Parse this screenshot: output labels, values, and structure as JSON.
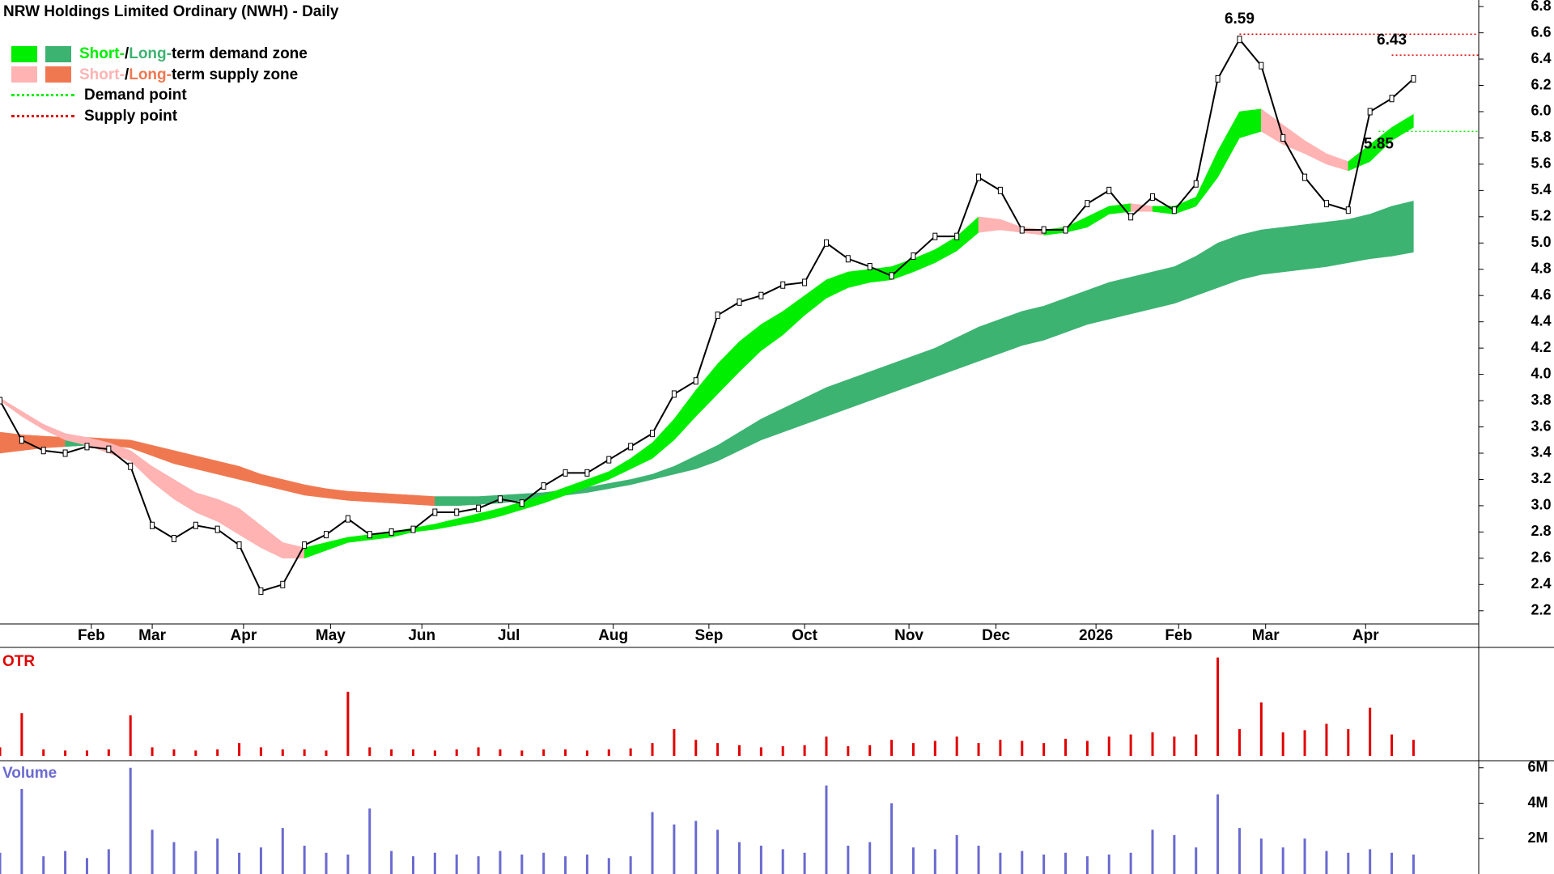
{
  "chart_data": {
    "type": "stock",
    "title": "NRW Holdings Limited Ordinary (NWH) - Daily",
    "legend": [
      {
        "short": "Short-",
        "sep": "/",
        "long": "Long-",
        "rest": "term demand zone"
      },
      {
        "short": "Short-",
        "sep": "/",
        "long": "Long-",
        "rest": "term supply zone"
      },
      {
        "rest": "Demand point"
      },
      {
        "rest": "Supply point"
      }
    ],
    "colors": {
      "demand_short": "#00ee00",
      "demand_long": "#3cb371",
      "supply_short": "#ffb3b3",
      "supply_long": "#f07850",
      "price": "#000000",
      "otr": "#e00000",
      "volume": "#6a6ad0"
    },
    "xlim": [
      0,
      340
    ],
    "xticks": [
      {
        "value": 21,
        "label": "Feb"
      },
      {
        "value": 35,
        "label": "Mar"
      },
      {
        "value": 56,
        "label": "Apr"
      },
      {
        "value": 76,
        "label": "May"
      },
      {
        "value": 97,
        "label": "Jun"
      },
      {
        "value": 117,
        "label": "Jul"
      },
      {
        "value": 141,
        "label": "Aug"
      },
      {
        "value": 163,
        "label": "Sep"
      },
      {
        "value": 185,
        "label": "Oct"
      },
      {
        "value": 209,
        "label": "Nov"
      },
      {
        "value": 229,
        "label": "Dec"
      },
      {
        "value": 252,
        "label": "2026"
      },
      {
        "value": 271,
        "label": "Feb"
      },
      {
        "value": 291,
        "label": "Mar"
      },
      {
        "value": 314,
        "label": "Apr"
      }
    ],
    "ylim": [
      2.1,
      6.85
    ],
    "yticks": [
      2.2,
      2.4,
      2.6,
      2.8,
      {
        "value": 3.0,
        "label": "3.0"
      },
      3.2,
      3.4,
      3.6,
      3.8,
      {
        "value": 4.0,
        "label": "4.0"
      },
      4.2,
      4.4,
      4.6,
      4.8,
      {
        "value": 5.0,
        "label": "5.0"
      },
      5.2,
      5.4,
      5.6,
      5.8,
      {
        "value": 6.0,
        "label": "6.0"
      },
      6.2,
      6.4,
      6.6,
      6.8
    ],
    "x": [
      0,
      5,
      10,
      15,
      20,
      25,
      30,
      35,
      40,
      45,
      50,
      55,
      60,
      65,
      70,
      75,
      80,
      85,
      90,
      95,
      100,
      105,
      110,
      115,
      120,
      125,
      130,
      135,
      140,
      145,
      150,
      155,
      160,
      165,
      170,
      175,
      180,
      185,
      190,
      195,
      200,
      205,
      210,
      215,
      220,
      225,
      230,
      235,
      240,
      245,
      250,
      255,
      260,
      265,
      270,
      275,
      280,
      285,
      290,
      295,
      300,
      305,
      310,
      315,
      320,
      325
    ],
    "close": [
      3.8,
      3.5,
      3.42,
      3.4,
      3.45,
      3.43,
      3.3,
      2.85,
      2.75,
      2.85,
      2.82,
      2.7,
      2.35,
      2.4,
      2.7,
      2.78,
      2.9,
      2.78,
      2.8,
      2.82,
      2.95,
      2.95,
      2.98,
      3.05,
      3.02,
      3.15,
      3.25,
      3.25,
      3.35,
      3.45,
      3.55,
      3.85,
      3.95,
      4.45,
      4.55,
      4.6,
      4.68,
      4.7,
      5.0,
      4.88,
      4.82,
      4.75,
      4.9,
      5.05,
      5.05,
      5.5,
      5.4,
      5.1,
      5.1,
      5.1,
      5.3,
      5.4,
      5.2,
      5.35,
      5.25,
      5.45,
      6.25,
      6.55,
      6.35,
      5.8,
      5.5,
      5.3,
      5.25,
      6.0,
      6.1,
      6.25
    ],
    "short_upper": [
      3.82,
      3.72,
      3.62,
      3.55,
      3.52,
      3.48,
      3.42,
      3.3,
      3.2,
      3.1,
      3.05,
      2.98,
      2.85,
      2.72,
      2.68,
      2.72,
      2.76,
      2.78,
      2.8,
      2.83,
      2.86,
      2.9,
      2.94,
      2.98,
      3.03,
      3.08,
      3.14,
      3.2,
      3.26,
      3.36,
      3.48,
      3.66,
      3.88,
      4.08,
      4.25,
      4.38,
      4.48,
      4.6,
      4.72,
      4.78,
      4.8,
      4.82,
      4.88,
      4.95,
      5.05,
      5.2,
      5.18,
      5.12,
      5.1,
      5.12,
      5.2,
      5.28,
      5.3,
      5.28,
      5.28,
      5.35,
      5.7,
      6.0,
      6.02,
      5.9,
      5.78,
      5.68,
      5.62,
      5.75,
      5.88,
      5.98
    ],
    "short_lower": [
      3.8,
      3.68,
      3.58,
      3.5,
      3.46,
      3.4,
      3.34,
      3.18,
      3.05,
      2.95,
      2.88,
      2.78,
      2.68,
      2.6,
      2.6,
      2.66,
      2.72,
      2.74,
      2.76,
      2.8,
      2.82,
      2.85,
      2.88,
      2.92,
      2.97,
      3.02,
      3.08,
      3.14,
      3.2,
      3.28,
      3.36,
      3.5,
      3.68,
      3.85,
      4.02,
      4.18,
      4.3,
      4.45,
      4.58,
      4.66,
      4.7,
      4.72,
      4.78,
      4.85,
      4.94,
      5.08,
      5.1,
      5.08,
      5.06,
      5.08,
      5.12,
      5.22,
      5.24,
      5.24,
      5.22,
      5.28,
      5.5,
      5.8,
      5.85,
      5.75,
      5.68,
      5.6,
      5.55,
      5.62,
      5.78,
      5.88
    ],
    "long_upper": [
      3.56,
      3.54,
      3.53,
      3.52,
      3.52,
      3.51,
      3.5,
      3.46,
      3.42,
      3.38,
      3.34,
      3.3,
      3.24,
      3.2,
      3.16,
      3.13,
      3.11,
      3.1,
      3.09,
      3.08,
      3.07,
      3.07,
      3.07,
      3.08,
      3.09,
      3.1,
      3.12,
      3.14,
      3.17,
      3.2,
      3.24,
      3.3,
      3.38,
      3.46,
      3.56,
      3.66,
      3.74,
      3.82,
      3.9,
      3.96,
      4.02,
      4.08,
      4.14,
      4.2,
      4.28,
      4.36,
      4.42,
      4.48,
      4.52,
      4.58,
      4.64,
      4.7,
      4.74,
      4.78,
      4.82,
      4.9,
      5.0,
      5.06,
      5.1,
      5.12,
      5.14,
      5.16,
      5.18,
      5.22,
      5.28,
      5.32
    ],
    "long_lower": [
      3.4,
      3.42,
      3.44,
      3.45,
      3.46,
      3.46,
      3.44,
      3.38,
      3.32,
      3.28,
      3.24,
      3.2,
      3.16,
      3.12,
      3.08,
      3.06,
      3.04,
      3.03,
      3.02,
      3.01,
      3.0,
      3.0,
      3.01,
      3.02,
      3.04,
      3.06,
      3.08,
      3.1,
      3.13,
      3.16,
      3.2,
      3.24,
      3.28,
      3.34,
      3.42,
      3.5,
      3.56,
      3.62,
      3.68,
      3.74,
      3.8,
      3.86,
      3.92,
      3.98,
      4.04,
      4.1,
      4.16,
      4.22,
      4.26,
      4.32,
      4.38,
      4.42,
      4.46,
      4.5,
      4.54,
      4.6,
      4.66,
      4.72,
      4.76,
      4.78,
      4.8,
      4.82,
      4.85,
      4.88,
      4.9,
      4.93
    ],
    "levels": [
      {
        "value": 6.59,
        "kind": "supply",
        "x": 285
      },
      {
        "value": 6.43,
        "kind": "supply",
        "x": 320
      },
      {
        "value": 5.85,
        "kind": "demand",
        "x": 317
      }
    ],
    "otr": {
      "label": "OTR",
      "ylim": [
        0,
        100
      ],
      "values": [
        8,
        40,
        6,
        5,
        5,
        6,
        38,
        8,
        6,
        5,
        6,
        12,
        8,
        6,
        6,
        5,
        60,
        8,
        6,
        6,
        5,
        6,
        8,
        6,
        5,
        6,
        6,
        5,
        6,
        7,
        12,
        25,
        15,
        12,
        10,
        8,
        9,
        10,
        18,
        9,
        10,
        15,
        12,
        14,
        18,
        12,
        15,
        14,
        12,
        16,
        14,
        18,
        20,
        22,
        18,
        20,
        92,
        25,
        50,
        22,
        24,
        30,
        25,
        45,
        20,
        15
      ]
    },
    "volume": {
      "label": "Volume",
      "ylim": [
        0,
        6400000
      ],
      "yticks": [
        {
          "value": 6000000,
          "label": "6M"
        },
        {
          "value": 4000000,
          "label": "4M"
        },
        {
          "value": 2000000,
          "label": "2M"
        }
      ],
      "values": [
        1200000,
        4800000,
        1000000,
        1300000,
        900000,
        1400000,
        6000000,
        2500000,
        1800000,
        1300000,
        2000000,
        1200000,
        1500000,
        2600000,
        1600000,
        1200000,
        1100000,
        3700000,
        1300000,
        1000000,
        1200000,
        1100000,
        1000000,
        1300000,
        1100000,
        1200000,
        1000000,
        1100000,
        900000,
        1000000,
        3500000,
        2800000,
        3000000,
        2500000,
        1800000,
        1600000,
        1400000,
        1200000,
        5000000,
        1600000,
        1800000,
        4000000,
        1500000,
        1400000,
        2200000,
        1600000,
        1200000,
        1300000,
        1100000,
        1200000,
        1000000,
        1100000,
        1200000,
        2500000,
        2200000,
        1500000,
        4500000,
        2600000,
        2000000,
        1500000,
        2000000,
        1300000,
        1200000,
        1400000,
        1200000,
        1100000
      ]
    }
  }
}
